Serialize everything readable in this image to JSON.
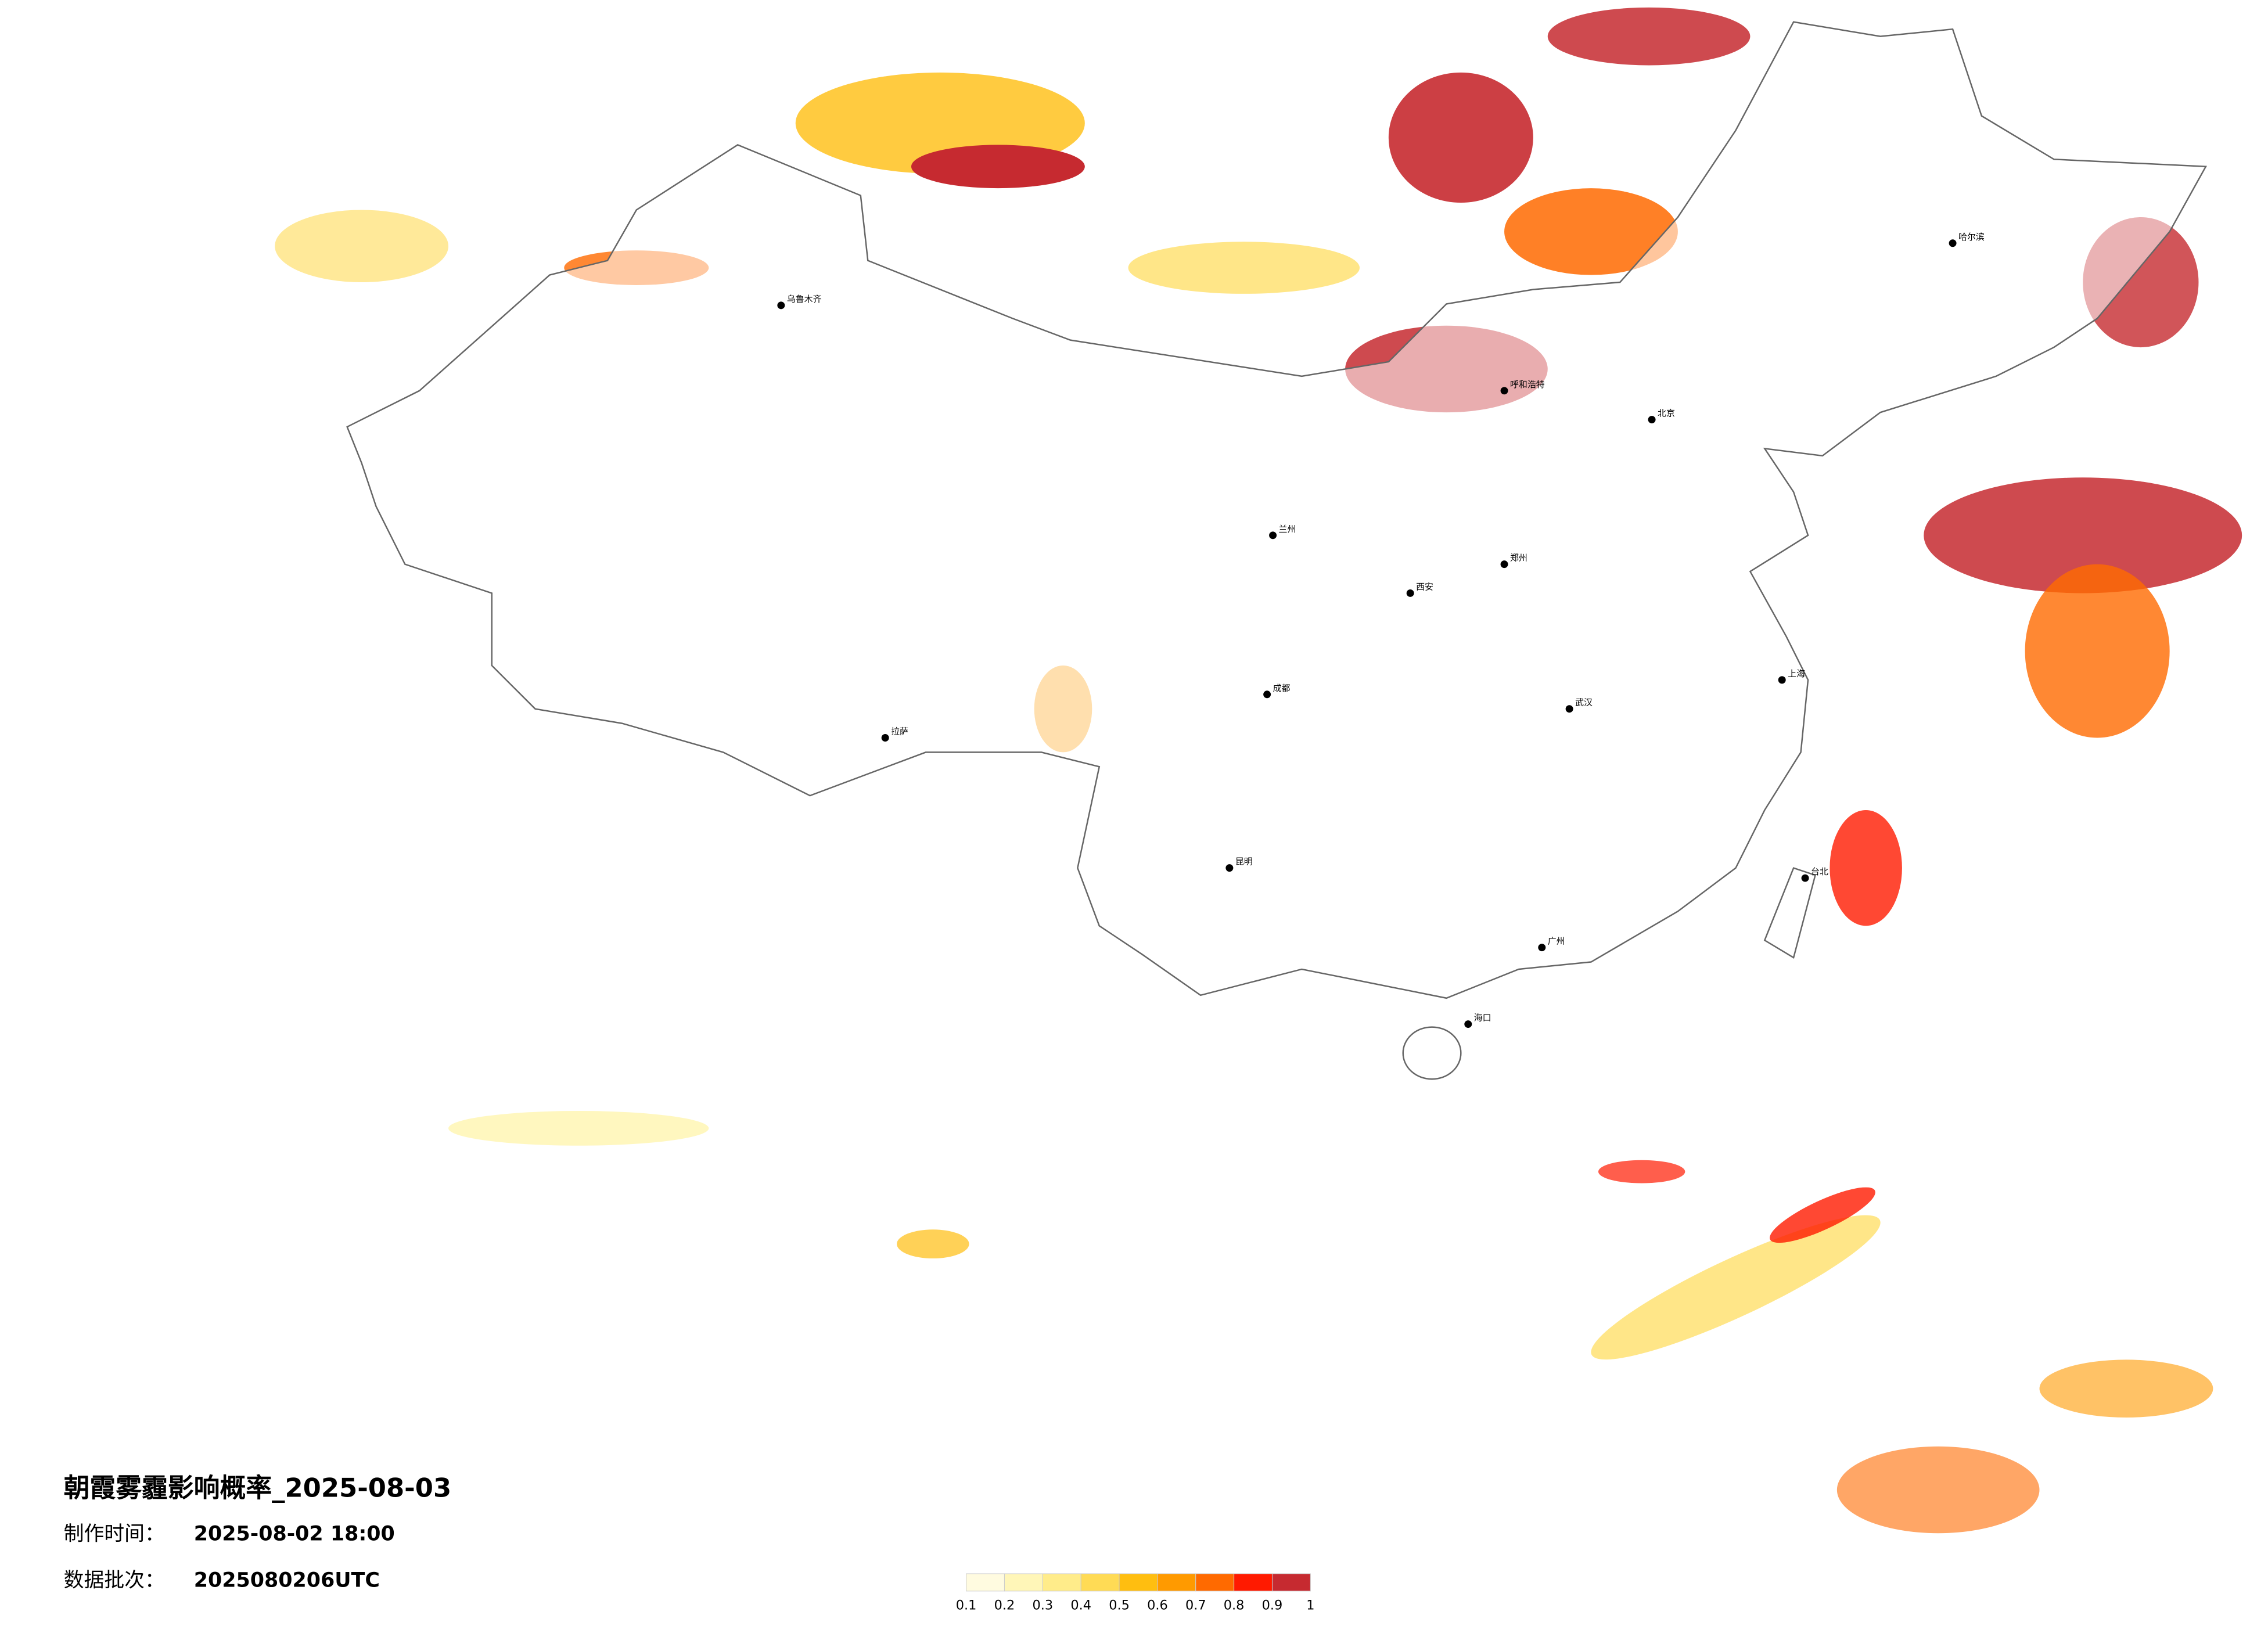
{
  "title": "朝霞雾霾影响概率_2025-08-03",
  "info": [
    {
      "label": "制作时间：",
      "value": "2025-08-02 18:00"
    },
    {
      "label": "数据批次：",
      "value": "2025080206UTC"
    }
  ],
  "legend": {
    "ticks": [
      0.1,
      0.2,
      0.3,
      0.4,
      0.5,
      0.6,
      0.7,
      0.8,
      0.9,
      1
    ],
    "colors": [
      "#fffbe0",
      "#fff6b8",
      "#ffec8a",
      "#ffdb55",
      "#ffbe10",
      "#ff9a00",
      "#ff6a00",
      "#ff1a00",
      "#c62a30"
    ]
  },
  "cities": [
    "北京",
    "上海",
    "广州",
    "乌鲁木齐",
    "拉萨",
    "哈尔滨",
    "成都",
    "西安",
    "昆明",
    "武汉",
    "郑州",
    "海口",
    "台北",
    "呼和浩特",
    "兰州"
  ]
}
